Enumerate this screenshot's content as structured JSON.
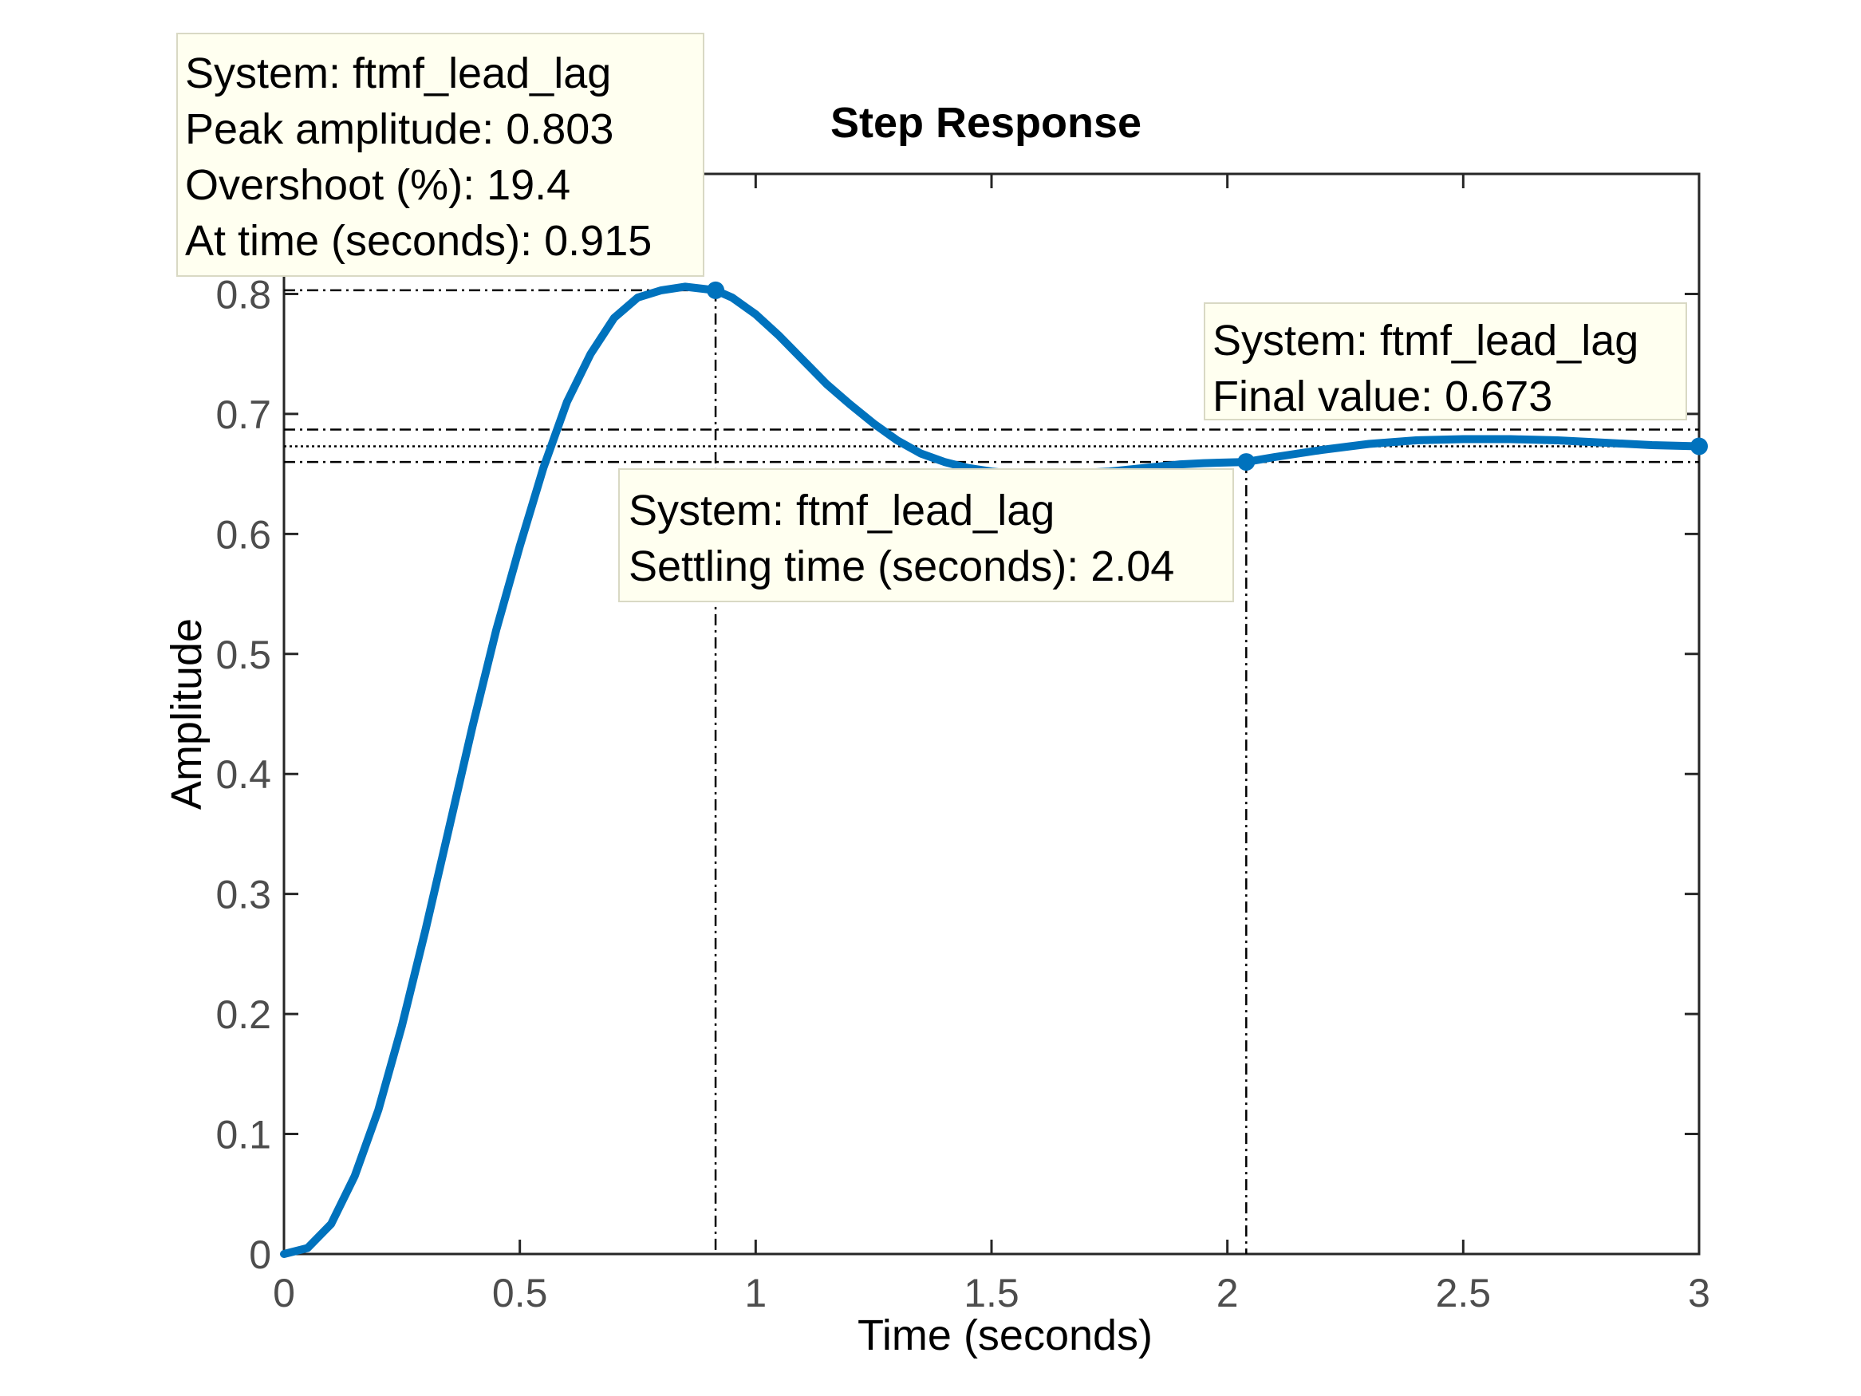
{
  "chart_data": {
    "type": "line",
    "title": "Step Response",
    "xlabel": "Time (seconds)",
    "ylabel": "Amplitude",
    "xlim": [
      0,
      3
    ],
    "ylim": [
      0,
      0.9
    ],
    "xticks": [
      0,
      0.5,
      1,
      1.5,
      2,
      2.5,
      3
    ],
    "xtick_labels": [
      "0",
      "0.5",
      "1",
      "1.5",
      "2",
      "2.5",
      "3"
    ],
    "yticks": [
      0,
      0.1,
      0.2,
      0.3,
      0.4,
      0.5,
      0.6,
      0.7,
      0.8
    ],
    "ytick_labels": [
      "0",
      "0.1",
      "0.2",
      "0.3",
      "0.4",
      "0.5",
      "0.6",
      "0.7",
      "0.8"
    ],
    "grid": false,
    "series": [
      {
        "color": "#0072BD",
        "x": [
          0,
          0.05,
          0.1,
          0.15,
          0.2,
          0.25,
          0.3,
          0.35,
          0.4,
          0.45,
          0.5,
          0.55,
          0.6,
          0.65,
          0.7,
          0.75,
          0.8,
          0.85,
          0.915,
          0.95,
          1.0,
          1.05,
          1.1,
          1.15,
          1.2,
          1.25,
          1.3,
          1.35,
          1.4,
          1.45,
          1.5,
          1.55,
          1.6,
          1.65,
          1.7,
          1.75,
          1.8,
          1.85,
          1.9,
          1.95,
          2.04,
          2.1,
          2.2,
          2.3,
          2.4,
          2.5,
          2.6,
          2.7,
          2.8,
          2.9,
          3.0
        ],
        "y": [
          0,
          0.005,
          0.025,
          0.065,
          0.12,
          0.19,
          0.27,
          0.355,
          0.44,
          0.52,
          0.59,
          0.655,
          0.71,
          0.75,
          0.78,
          0.797,
          0.803,
          0.806,
          0.803,
          0.797,
          0.783,
          0.765,
          0.745,
          0.725,
          0.708,
          0.692,
          0.678,
          0.667,
          0.66,
          0.655,
          0.652,
          0.65,
          0.65,
          0.65,
          0.651,
          0.652,
          0.654,
          0.656,
          0.658,
          0.659,
          0.66,
          0.664,
          0.67,
          0.675,
          0.678,
          0.679,
          0.679,
          0.678,
          0.676,
          0.674,
          0.673
        ]
      }
    ],
    "characteristics": {
      "peak": {
        "x": 0.915,
        "y": 0.803
      },
      "settling": {
        "x": 2.04,
        "y": 0.66
      },
      "final": {
        "x": 3.0,
        "y": 0.673
      },
      "settling_band": [
        0.66,
        0.687
      ]
    },
    "datatips": {
      "peak": [
        "System: ftmf_lead_lag",
        "Peak amplitude: 0.803",
        "Overshoot (%): 19.4",
        "At time (seconds): 0.915"
      ],
      "settling": [
        "System: ftmf_lead_lag",
        "Settling time (seconds): 2.04"
      ],
      "final": [
        "System: ftmf_lead_lag",
        "Final value: 0.673"
      ]
    },
    "datatip_background": "#FFFFF0"
  }
}
